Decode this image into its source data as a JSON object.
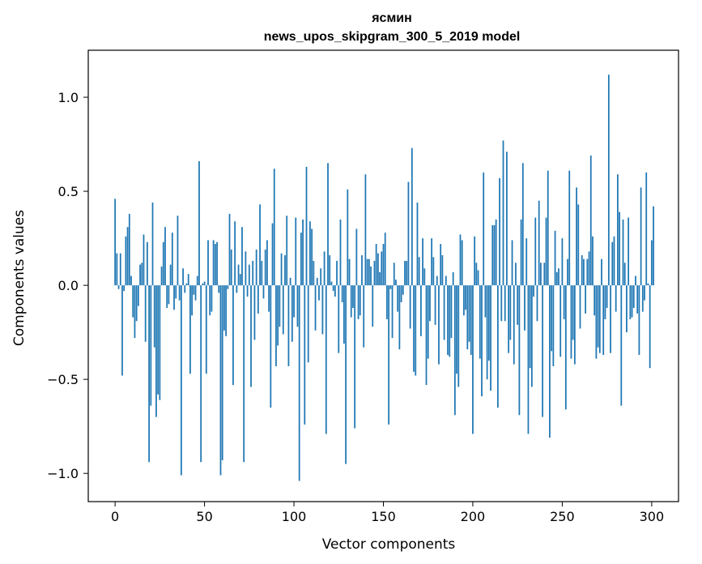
{
  "chart_data": {
    "type": "bar",
    "title": "ясмин",
    "subtitle": "news_upos_skipgram_300_5_2019 model",
    "xlabel": "Vector components",
    "ylabel": "Components values",
    "xlim": [
      -15,
      315
    ],
    "ylim": [
      -1.15,
      1.25
    ],
    "xticks": [
      0,
      50,
      100,
      150,
      200,
      250,
      300
    ],
    "xtick_labels": [
      "0",
      "50",
      "100",
      "150",
      "200",
      "250",
      "300"
    ],
    "yticks": [
      -1.0,
      -0.5,
      0.0,
      0.5,
      1.0
    ],
    "ytick_labels": [
      "−1.0",
      "−0.5",
      "0.0",
      "0.5",
      "1.0"
    ],
    "grid": false,
    "bar_color": "#1f77b4",
    "x_start": 0,
    "values": [
      0.46,
      0.17,
      -0.02,
      0.17,
      -0.48,
      -0.03,
      0.26,
      0.31,
      0.38,
      0.05,
      -0.17,
      -0.28,
      -0.19,
      -0.11,
      0.11,
      0.12,
      0.27,
      -0.3,
      0.23,
      -0.94,
      -0.64,
      0.44,
      -0.33,
      -0.7,
      -0.58,
      -0.61,
      0.1,
      0.23,
      0.31,
      -0.12,
      -0.1,
      0.11,
      0.28,
      -0.13,
      -0.07,
      0.37,
      -0.08,
      -1.01,
      0.09,
      -0.04,
      0.01,
      0.06,
      -0.47,
      -0.16,
      -0.05,
      -0.08,
      0.05,
      0.66,
      -0.94,
      0.01,
      0.02,
      -0.47,
      0.24,
      -0.16,
      -0.14,
      0.24,
      0.22,
      0.23,
      -0.04,
      -1.01,
      -0.93,
      -0.24,
      -0.27,
      -0.02,
      0.38,
      0.19,
      -0.53,
      0.34,
      -0.04,
      0.11,
      0.06,
      0.31,
      -0.94,
      0.18,
      -0.06,
      0.11,
      -0.54,
      0.13,
      -0.29,
      0.19,
      -0.15,
      0.43,
      0.13,
      -0.07,
      0.19,
      0.24,
      -0.14,
      -0.65,
      0.33,
      0.62,
      -0.43,
      -0.32,
      -0.22,
      0.17,
      -0.26,
      0.16,
      0.37,
      -0.43,
      0.04,
      -0.3,
      -0.17,
      0.36,
      -0.22,
      -1.04,
      0.28,
      0.35,
      -0.74,
      0.63,
      -0.41,
      0.34,
      0.3,
      0.13,
      -0.24,
      0.04,
      -0.08,
      0.09,
      -0.26,
      0.18,
      -0.79,
      0.65,
      0.16,
      0.02,
      -0.03,
      -0.06,
      0.13,
      -0.36,
      0.35,
      -0.09,
      -0.31,
      -0.95,
      0.51,
      0.14,
      -0.17,
      -0.12,
      -0.76,
      0.3,
      -0.18,
      -0.16,
      0.16,
      -0.33,
      0.59,
      0.14,
      0.14,
      0.1,
      -0.22,
      0.13,
      0.22,
      0.17,
      0.07,
      0.18,
      0.22,
      0.28,
      -0.18,
      -0.74,
      -0.02,
      -0.28,
      0.12,
      0.03,
      -0.14,
      -0.34,
      -0.09,
      -0.05,
      0.13,
      0.13,
      0.55,
      -0.23,
      0.73,
      -0.46,
      -0.48,
      0.44,
      0.15,
      -0.27,
      0.25,
      0.09,
      -0.53,
      -0.39,
      -0.19,
      0.25,
      0.15,
      -0.21,
      0.05,
      -0.42,
      0.22,
      0.16,
      -0.29,
      0.05,
      -0.37,
      -0.38,
      -0.28,
      0.07,
      -0.69,
      -0.47,
      -0.54,
      0.27,
      0.24,
      -0.16,
      -0.13,
      -0.34,
      -0.3,
      -0.37,
      -0.79,
      0.26,
      0.12,
      0.08,
      -0.39,
      -0.59,
      0.6,
      -0.17,
      -0.5,
      -0.4,
      -0.56,
      0.32,
      0.32,
      0.35,
      -0.65,
      0.57,
      -0.19,
      0.77,
      -0.19,
      0.71,
      -0.36,
      -0.29,
      0.24,
      -0.42,
      0.12,
      -0.21,
      -0.69,
      0.35,
      0.65,
      -0.24,
      0.25,
      -0.79,
      -0.44,
      -0.54,
      -0.06,
      0.36,
      -0.19,
      0.45,
      0.12,
      -0.7,
      0.12,
      0.36,
      0.61,
      -0.81,
      -0.35,
      -0.43,
      0.29,
      0.07,
      0.09,
      -0.38,
      0.25,
      -0.18,
      -0.66,
      0.14,
      0.61,
      -0.39,
      -0.29,
      -0.42,
      0.52,
      0.43,
      -0.23,
      0.16,
      0.14,
      -0.15,
      0.14,
      0.18,
      0.69,
      0.26,
      -0.16,
      -0.39,
      -0.33,
      -0.36,
      0.14,
      -0.37,
      -0.18,
      -0.12,
      1.12,
      -0.36,
      0.23,
      0.26,
      -0.14,
      0.59,
      0.39,
      -0.64,
      0.35,
      0.12,
      -0.25,
      0.36,
      -0.18,
      -0.17,
      -0.12,
      0.05,
      -0.15,
      -0.37,
      0.52,
      -0.14,
      -0.08,
      0.6,
      0.01,
      -0.44,
      0.24,
      0.42
    ]
  }
}
